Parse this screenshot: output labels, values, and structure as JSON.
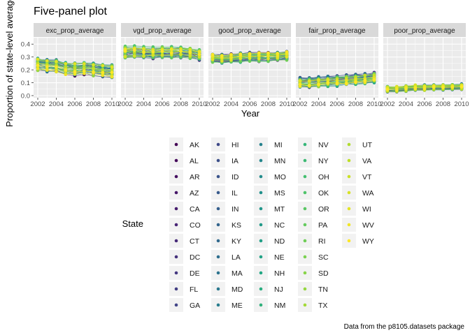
{
  "chart_data": {
    "type": "scatter",
    "title": "Five-panel plot",
    "xlabel": "Year",
    "ylabel": "Proportion of state-level average",
    "caption": "Data from the p8105.datasets package",
    "xlim": [
      2002,
      2010
    ],
    "ylim": [
      0,
      0.45
    ],
    "x_ticks": [
      2002,
      2004,
      2006,
      2008,
      2010
    ],
    "y_ticks": [
      0.0,
      0.1,
      0.2,
      0.3,
      0.4
    ],
    "y_tick_labels": [
      "0.0",
      "0.1",
      "0.2",
      "0.3",
      "0.4"
    ],
    "grid": true,
    "legend": {
      "title": "State",
      "position": "bottom",
      "columns": 6
    },
    "years": [
      2002,
      2003,
      2004,
      2005,
      2006,
      2007,
      2008,
      2009,
      2010
    ],
    "panels": [
      {
        "name": "exc_prop_average",
        "mean": [
          0.245,
          0.235,
          0.23,
          0.21,
          0.205,
          0.21,
          0.205,
          0.195,
          0.19
        ],
        "spread": 0.045
      },
      {
        "name": "vgd_prop_average",
        "mean": [
          0.335,
          0.34,
          0.335,
          0.33,
          0.335,
          0.335,
          0.335,
          0.33,
          0.32
        ],
        "spread": 0.04
      },
      {
        "name": "good_prop_average",
        "mean": [
          0.29,
          0.285,
          0.29,
          0.295,
          0.3,
          0.3,
          0.3,
          0.305,
          0.31
        ],
        "spread": 0.03
      },
      {
        "name": "fair_prop_average",
        "mean": [
          0.1,
          0.1,
          0.105,
          0.11,
          0.115,
          0.12,
          0.125,
          0.13,
          0.14
        ],
        "spread": 0.035
      },
      {
        "name": "poor_prop_average",
        "mean": [
          0.05,
          0.05,
          0.055,
          0.06,
          0.06,
          0.065,
          0.065,
          0.065,
          0.07
        ],
        "spread": 0.02
      }
    ],
    "states": [
      "AK",
      "AL",
      "AR",
      "AZ",
      "CA",
      "CO",
      "CT",
      "DC",
      "DE",
      "FL",
      "GA",
      "HI",
      "IA",
      "ID",
      "IL",
      "IN",
      "KS",
      "KY",
      "LA",
      "MA",
      "MD",
      "ME",
      "MI",
      "MN",
      "MO",
      "MS",
      "MT",
      "NC",
      "ND",
      "NE",
      "NH",
      "NJ",
      "NM",
      "NV",
      "NY",
      "OH",
      "OK",
      "OR",
      "PA",
      "RI",
      "SC",
      "SD",
      "TN",
      "TX",
      "UT",
      "VA",
      "VT",
      "WA",
      "WI",
      "WV",
      "WY"
    ],
    "palette": [
      "#440154",
      "#482475",
      "#414487",
      "#355f8d",
      "#2a788e",
      "#21918c",
      "#22a884",
      "#44bf70",
      "#7ad151",
      "#bddf26",
      "#fde725"
    ]
  }
}
